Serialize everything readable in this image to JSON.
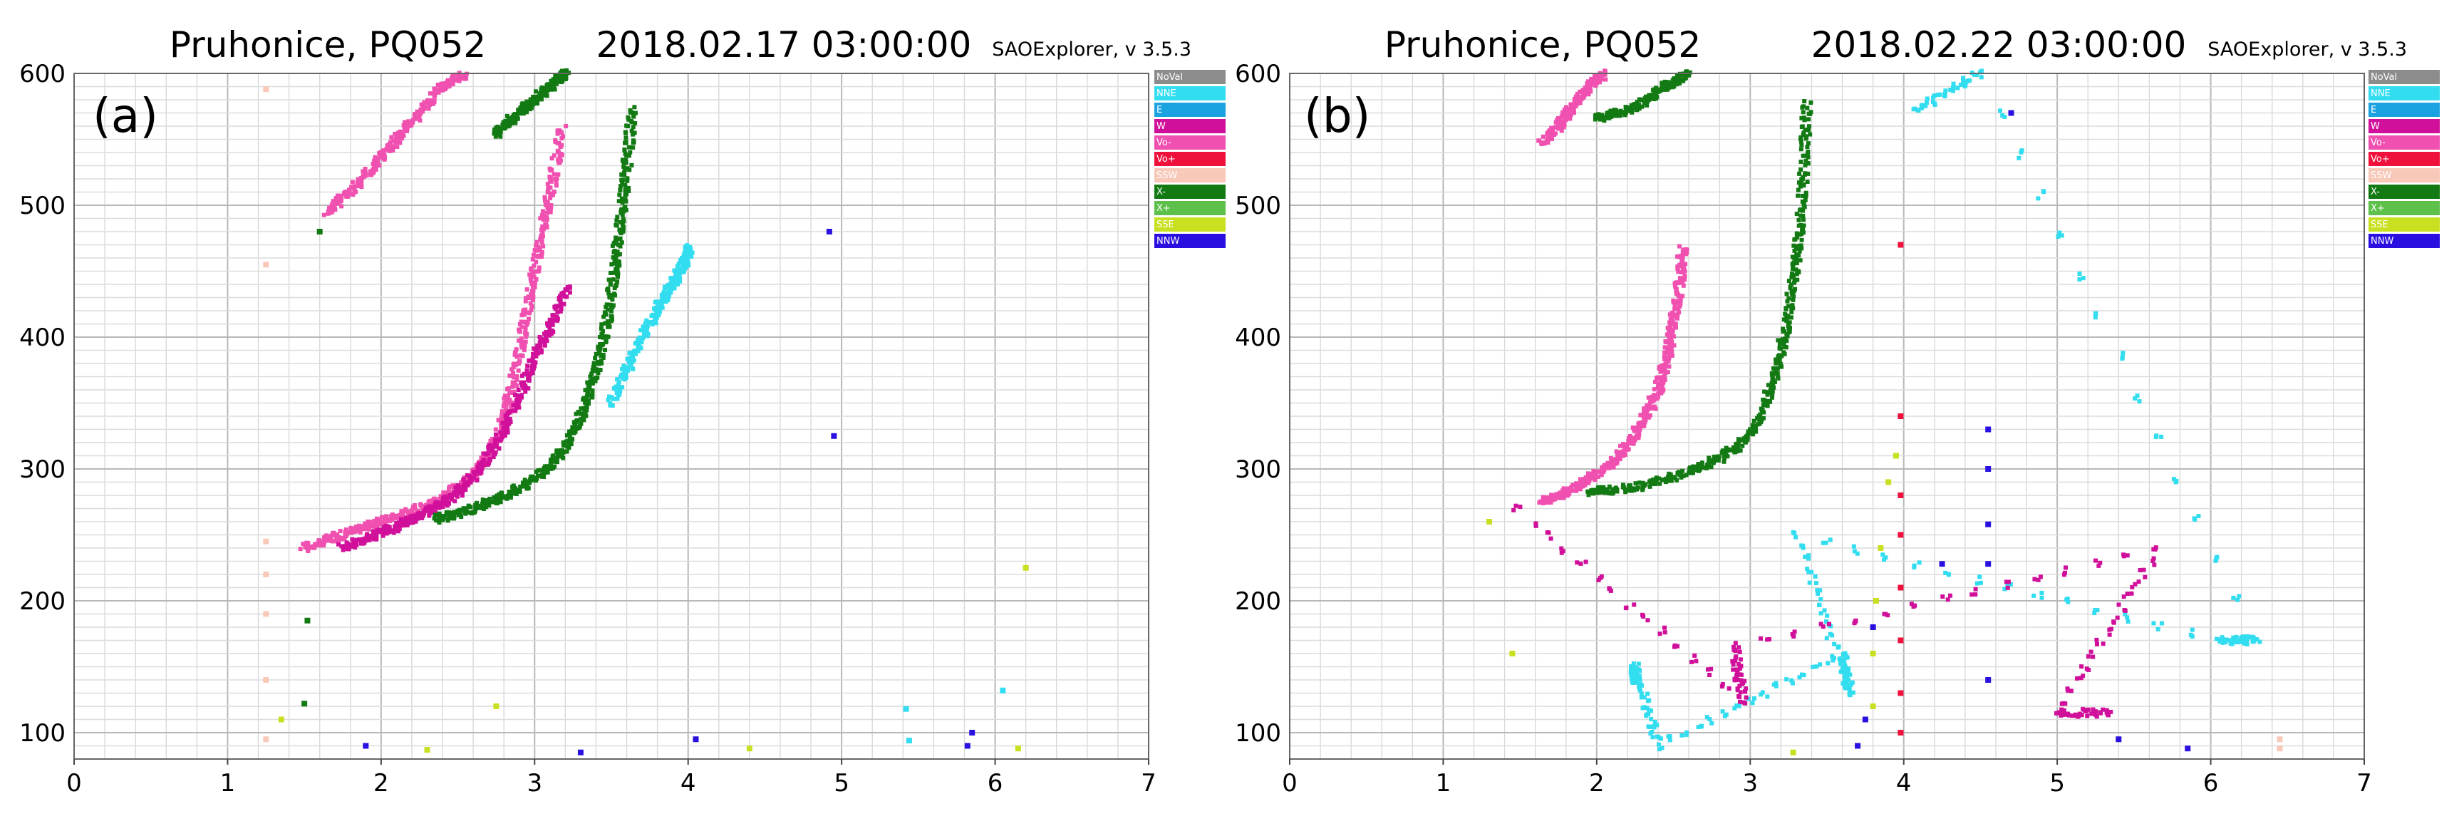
{
  "panels": [
    {
      "station": "Pruhonice, PQ052",
      "datetime": "2018.02.17 03:00:00",
      "software": "SAOExplorer, v 3.5.3",
      "panel_label": "(a)"
    },
    {
      "station": "Pruhonice, PQ052",
      "datetime": "2018.02.22 03:00:00",
      "software": "SAOExplorer, v 3.5.3",
      "panel_label": "(b)"
    }
  ],
  "legend": [
    {
      "label": "NoVal",
      "color": "#8c8c8c"
    },
    {
      "label": "NNE",
      "color": "#33ddf0"
    },
    {
      "label": "E",
      "color": "#1aa3e0"
    },
    {
      "label": "W",
      "color": "#d0109a"
    },
    {
      "label": "Vo-",
      "color": "#f050b0"
    },
    {
      "label": "Vo+",
      "color": "#f0103c"
    },
    {
      "label": "SSW",
      "color": "#f8c8b8"
    },
    {
      "label": "X-",
      "color": "#137a13"
    },
    {
      "label": "X+",
      "color": "#5cc04a"
    },
    {
      "label": "SSE",
      "color": "#c8e020"
    },
    {
      "label": "NNW",
      "color": "#2a10e0"
    }
  ],
  "chart_data": [
    {
      "type": "scatter",
      "title": "Pruhonice, PQ052 2018.02.17 03:00:00",
      "xlim": [
        0,
        7
      ],
      "ylim": [
        80,
        600
      ],
      "xticks": [
        "0",
        "1",
        "2",
        "3",
        "4",
        "5",
        "6",
        "7"
      ],
      "yticks": [
        "100",
        "200",
        "300",
        "400",
        "500",
        "600"
      ],
      "traces": [
        {
          "series": "Vo-",
          "color": "#f050b0",
          "x": [
            1.5,
            1.7,
            1.9,
            2.1,
            2.3,
            2.45,
            2.6,
            2.7,
            2.78,
            2.85,
            2.92,
            2.98,
            3.05,
            3.12,
            3.18
          ],
          "y": [
            240,
            248,
            256,
            264,
            272,
            282,
            295,
            310,
            330,
            360,
            400,
            440,
            480,
            520,
            560
          ]
        },
        {
          "series": "W",
          "color": "#d0109a",
          "x": [
            1.75,
            1.9,
            2.05,
            2.2,
            2.35,
            2.5,
            2.65,
            2.78,
            2.9,
            3.0,
            3.12,
            3.22
          ],
          "y": [
            240,
            247,
            254,
            262,
            270,
            282,
            300,
            325,
            355,
            385,
            410,
            440
          ]
        },
        {
          "series": "X-",
          "color": "#137a13",
          "x": [
            2.35,
            2.55,
            2.75,
            2.95,
            3.1,
            3.22,
            3.32,
            3.4,
            3.47,
            3.52,
            3.56,
            3.6,
            3.64
          ],
          "y": [
            262,
            268,
            276,
            288,
            302,
            320,
            345,
            375,
            410,
            450,
            490,
            530,
            575
          ]
        },
        {
          "series": "NNE",
          "color": "#33ddf0",
          "x": [
            3.5,
            3.62,
            3.72,
            3.82,
            3.9,
            3.97,
            4.02
          ],
          "y": [
            350,
            380,
            405,
            425,
            440,
            455,
            470
          ]
        },
        {
          "series": "Vo-",
          "color": "#f050b0",
          "x": [
            1.65,
            1.8,
            1.95,
            2.1,
            2.25,
            2.4,
            2.55
          ],
          "y": [
            495,
            510,
            530,
            550,
            570,
            590,
            600
          ]
        },
        {
          "series": "X-",
          "color": "#137a13",
          "x": [
            2.75,
            2.85,
            2.95,
            3.05,
            3.15,
            3.2
          ],
          "y": [
            555,
            565,
            575,
            585,
            595,
            600
          ]
        },
        {
          "series": "SSW",
          "color": "#f8c8b8",
          "x": [
            1.25,
            1.25,
            1.25,
            1.25,
            1.25,
            1.25,
            1.25
          ],
          "y": [
            95,
            140,
            190,
            220,
            245,
            455,
            588
          ]
        },
        {
          "series": "NNW",
          "color": "#2a10e0",
          "x": [
            1.9,
            3.3,
            4.05,
            4.92,
            4.95,
            5.82,
            5.85
          ],
          "y": [
            90,
            85,
            95,
            480,
            325,
            90,
            100
          ]
        },
        {
          "series": "NNE",
          "color": "#33ddf0",
          "x": [
            5.42,
            5.44,
            6.05
          ],
          "y": [
            118,
            94,
            132
          ]
        },
        {
          "series": "SSE",
          "color": "#c8e020",
          "x": [
            1.35,
            2.3,
            2.75,
            4.4,
            6.15,
            6.2
          ],
          "y": [
            110,
            87,
            120,
            88,
            88,
            225
          ]
        },
        {
          "series": "X-",
          "color": "#137a13",
          "x": [
            1.52,
            1.5,
            1.6
          ],
          "y": [
            185,
            122,
            480
          ]
        }
      ]
    },
    {
      "type": "scatter",
      "title": "Pruhonice, PQ052 2018.02.22 03:00:00",
      "xlim": [
        0,
        7
      ],
      "ylim": [
        80,
        600
      ],
      "xticks": [
        "0",
        "1",
        "2",
        "3",
        "4",
        "5",
        "6",
        "7"
      ],
      "yticks": [
        "100",
        "200",
        "300",
        "400",
        "500",
        "600"
      ],
      "traces": [
        {
          "series": "Vo-",
          "color": "#f050b0",
          "x": [
            1.65,
            1.8,
            1.95,
            2.1,
            2.22,
            2.32,
            2.4,
            2.46,
            2.5,
            2.54,
            2.56
          ],
          "y": [
            275,
            282,
            292,
            305,
            320,
            340,
            360,
            385,
            410,
            440,
            470
          ]
        },
        {
          "series": "X-",
          "color": "#137a13",
          "x": [
            1.95,
            2.2,
            2.45,
            2.7,
            2.9,
            3.05,
            3.15,
            3.22,
            3.28,
            3.32,
            3.35,
            3.37
          ],
          "y": [
            283,
            285,
            292,
            302,
            315,
            335,
            365,
            400,
            440,
            480,
            530,
            580
          ]
        },
        {
          "series": "Vo-",
          "color": "#f050b0",
          "x": [
            1.65,
            1.75,
            1.85,
            1.95,
            2.05
          ],
          "y": [
            548,
            560,
            575,
            590,
            600
          ]
        },
        {
          "series": "X-",
          "color": "#137a13",
          "x": [
            2.0,
            2.15,
            2.3,
            2.45,
            2.6
          ],
          "y": [
            566,
            570,
            578,
            590,
            600
          ]
        },
        {
          "series": "Vo+",
          "color": "#f0103c",
          "x": [
            3.98,
            3.98,
            3.98,
            3.98,
            3.98,
            3.98,
            3.98,
            3.98
          ],
          "y": [
            100,
            130,
            170,
            210,
            250,
            280,
            340,
            470
          ]
        },
        {
          "series": "SSE",
          "color": "#c8e020",
          "x": [
            3.8,
            3.8,
            3.82,
            3.85,
            3.9,
            3.95,
            1.45,
            1.3,
            3.28
          ],
          "y": [
            120,
            160,
            200,
            240,
            290,
            310,
            160,
            260,
            85
          ]
        },
        {
          "series": "NNW",
          "color": "#2a10e0",
          "x": [
            3.7,
            3.75,
            3.8,
            4.25,
            4.55,
            4.55,
            4.55,
            4.55,
            4.55,
            5.85,
            5.4,
            4.7
          ],
          "y": [
            90,
            110,
            180,
            228,
            140,
            228,
            258,
            300,
            330,
            88,
            95,
            570
          ]
        },
        {
          "series": "NNE",
          "color": "#33ddf0",
          "x": [
            2.25,
            2.25,
            2.4,
            3.6,
            3.65,
            3.3,
            6.05,
            6.3,
            4.5,
            4.05
          ],
          "y": [
            140,
            150,
            90,
            160,
            130,
            250,
            170,
            170,
            600,
            570
          ]
        },
        {
          "series": "W",
          "color": "#d0109a",
          "x": [
            1.48,
            2.95,
            2.9,
            5.65,
            5.0,
            5.35
          ],
          "y": [
            270,
            125,
            165,
            238,
            115,
            115
          ]
        },
        {
          "series": "SSW",
          "color": "#f8c8b8",
          "x": [
            6.45,
            6.45
          ],
          "y": [
            88,
            95
          ]
        }
      ]
    }
  ]
}
